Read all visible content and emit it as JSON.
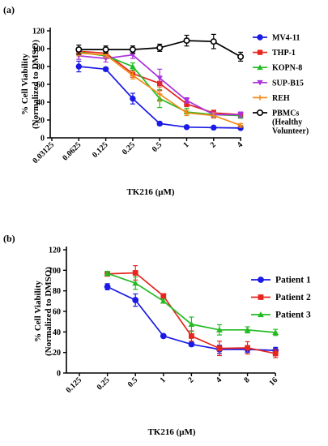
{
  "chart_data": [
    {
      "panel": "(a)",
      "type": "line",
      "xlabel": "TK216 (μM)",
      "ylabel": "% Cell Viability\n(Normalized to DMSO)",
      "x_scale": "log2",
      "x_ticks": [
        "0.03125",
        "0.0625",
        "0.125",
        "0.25",
        "0.5",
        "1",
        "2",
        "4"
      ],
      "x": [
        0.0625,
        0.125,
        0.25,
        0.5,
        1,
        2,
        4
      ],
      "ylim": [
        0,
        120
      ],
      "y_ticks": [
        "0",
        "20",
        "40",
        "60",
        "80",
        "100",
        "120"
      ],
      "legend_position": "right",
      "series": [
        {
          "name": "MV4-11",
          "color": "#1a1ae6",
          "marker": "circle",
          "values": [
            80,
            77,
            44,
            16,
            12,
            11.5,
            11
          ],
          "err": [
            6,
            2,
            6,
            2,
            1,
            1,
            1
          ]
        },
        {
          "name": "THP-1",
          "color": "#e6261f",
          "marker": "square",
          "values": [
            97,
            95,
            72,
            61,
            38,
            28,
            26
          ],
          "err": [
            3,
            3,
            4,
            8,
            3,
            3,
            2
          ]
        },
        {
          "name": "KOPN-8",
          "color": "#22bb22",
          "marker": "triangle-up",
          "values": [
            96,
            92,
            80,
            44,
            29,
            26,
            25
          ],
          "err": [
            3,
            3,
            4,
            10,
            4,
            3,
            3
          ]
        },
        {
          "name": "SUP-B15",
          "color": "#aa33dd",
          "marker": "triangle-down",
          "values": [
            92,
            89,
            93,
            67,
            42,
            26,
            26
          ],
          "err": [
            4,
            4,
            4,
            10,
            3,
            3,
            3
          ]
        },
        {
          "name": "REH",
          "color": "#f28c1a",
          "marker": "plus",
          "values": [
            95,
            93,
            70,
            49,
            28,
            25,
            14
          ],
          "err": [
            3,
            3,
            4,
            8,
            3,
            3,
            2
          ]
        },
        {
          "name": "PBMCs\n(Healthy\nVolunteer)",
          "color": "#000000",
          "marker": "circle-open",
          "values": [
            99,
            99,
            99,
            101,
            109,
            108,
            91
          ],
          "err": [
            5,
            4,
            4,
            4,
            6,
            8,
            5
          ]
        }
      ]
    },
    {
      "panel": "(b)",
      "type": "line",
      "xlabel": "TK216 (μM)",
      "ylabel": "% Cell Viability\n(Normalized to DMSO)",
      "x_scale": "log2",
      "x_ticks": [
        "0.125",
        "0.25",
        "0.5",
        "1",
        "2",
        "4",
        "8",
        "16"
      ],
      "x": [
        0.25,
        0.5,
        1,
        2,
        4,
        8,
        16
      ],
      "ylim": [
        0,
        120
      ],
      "y_ticks": [
        "0",
        "20",
        "40",
        "60",
        "80",
        "100",
        "120"
      ],
      "legend_position": "right",
      "series": [
        {
          "name": "Patient 1",
          "color": "#1a1ae6",
          "marker": "circle",
          "values": [
            84,
            71,
            36,
            28,
            23,
            23,
            22
          ],
          "err": [
            3,
            6,
            1,
            2,
            4,
            3,
            3
          ]
        },
        {
          "name": "Patient 2",
          "color": "#e6261f",
          "marker": "square",
          "values": [
            96.5,
            97.5,
            75,
            36,
            24,
            24.5,
            19
          ],
          "err": [
            2,
            7,
            2,
            5,
            7,
            6,
            4
          ]
        },
        {
          "name": "Patient 3",
          "color": "#22bb22",
          "marker": "triangle-up",
          "values": [
            97,
            87.5,
            70,
            47.5,
            42,
            42,
            39.5
          ],
          "err": [
            2,
            6,
            2,
            7,
            5,
            3,
            3
          ]
        }
      ]
    }
  ]
}
